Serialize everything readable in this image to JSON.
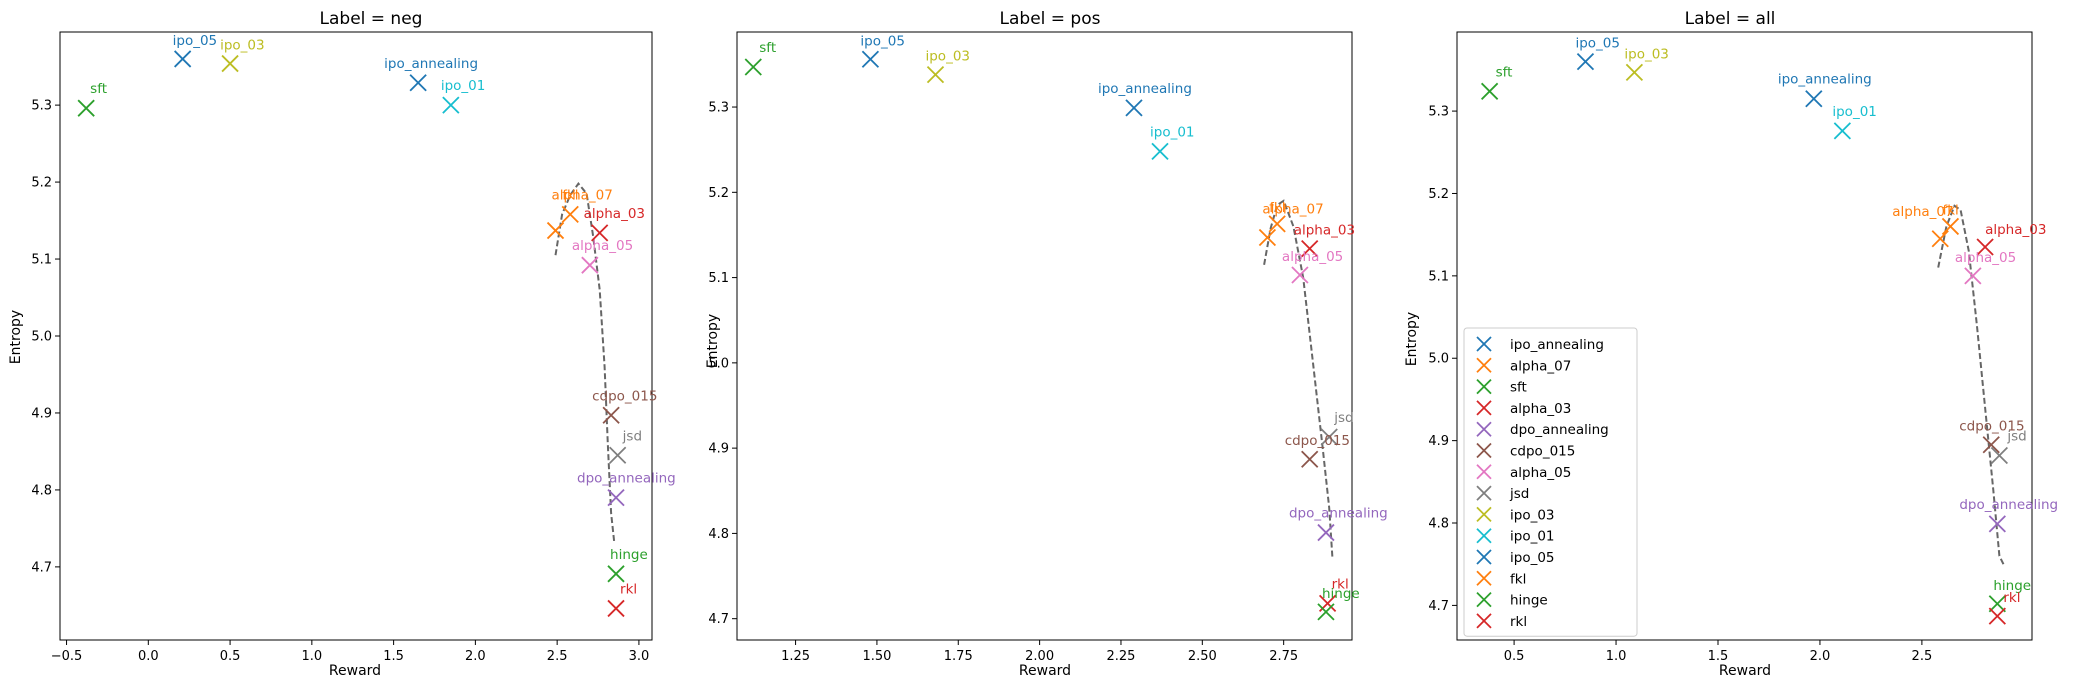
{
  "colors": {
    "ipo_annealing": "#1f77b4",
    "alpha_07": "#ff7f0e",
    "sft": "#2ca02c",
    "alpha_03": "#d62728",
    "dpo_annealing": "#9467bd",
    "cdpo_015": "#8c564b",
    "alpha_05": "#e377c2",
    "jsd": "#7f7f7f",
    "ipo_03": "#bcbd22",
    "ipo_01": "#17becf",
    "ipo_05": "#1f77b4",
    "fkl": "#ff7f0e",
    "hinge": "#2ca02c",
    "rkl": "#d62728",
    "curve": "#666666"
  },
  "legend_order": [
    "ipo_annealing",
    "alpha_07",
    "sft",
    "alpha_03",
    "dpo_annealing",
    "cdpo_015",
    "alpha_05",
    "jsd",
    "ipo_03",
    "ipo_01",
    "ipo_05",
    "fkl",
    "hinge",
    "rkl"
  ],
  "chart_data": [
    {
      "type": "scatter",
      "title": "Label = neg",
      "xlabel": "Reward",
      "ylabel": "Entropy",
      "xlim": [
        -0.54,
        3.08
      ],
      "ylim": [
        4.605,
        5.395
      ],
      "xticks": [
        -0.5,
        0.0,
        0.5,
        1.0,
        1.5,
        2.0,
        2.5,
        3.0
      ],
      "xtick_labels": [
        "−0.5",
        "0.0",
        "0.5",
        "1.0",
        "1.5",
        "2.0",
        "2.5",
        "3.0"
      ],
      "yticks": [
        4.7,
        4.8,
        4.9,
        5.0,
        5.1,
        5.2,
        5.3
      ],
      "ytick_labels": [
        "4.7",
        "4.8",
        "4.9",
        "5.0",
        "5.1",
        "5.2",
        "5.3"
      ],
      "legend": null,
      "points": [
        {
          "name": "ipo_05",
          "x": 0.21,
          "y": 5.36
        },
        {
          "name": "ipo_03",
          "x": 0.5,
          "y": 5.354
        },
        {
          "name": "sft",
          "x": -0.38,
          "y": 5.296
        },
        {
          "name": "ipo_annealing",
          "x": 1.65,
          "y": 5.329
        },
        {
          "name": "ipo_01",
          "x": 1.85,
          "y": 5.3
        },
        {
          "name": "alpha_07",
          "x": 2.49,
          "y": 5.137
        },
        {
          "name": "fkl",
          "x": 2.58,
          "y": 5.158
        },
        {
          "name": "alpha_03",
          "x": 2.76,
          "y": 5.134
        },
        {
          "name": "alpha_05",
          "x": 2.7,
          "y": 5.092
        },
        {
          "name": "cdpo_015",
          "x": 2.83,
          "y": 4.897
        },
        {
          "name": "jsd",
          "x": 2.87,
          "y": 4.845
        },
        {
          "name": "dpo_annealing",
          "x": 2.86,
          "y": 4.79
        },
        {
          "name": "hinge",
          "x": 2.86,
          "y": 4.691
        },
        {
          "name": "rkl",
          "x": 2.86,
          "y": 4.646
        }
      ],
      "curve": [
        [
          2.49,
          5.105
        ],
        [
          2.53,
          5.158
        ],
        [
          2.58,
          5.183
        ],
        [
          2.63,
          5.198
        ],
        [
          2.68,
          5.185
        ],
        [
          2.72,
          5.13
        ],
        [
          2.76,
          5.06
        ],
        [
          2.79,
          4.96
        ],
        [
          2.81,
          4.86
        ],
        [
          2.83,
          4.77
        ],
        [
          2.85,
          4.73
        ]
      ]
    },
    {
      "type": "scatter",
      "title": "Label = pos",
      "xlabel": "Reward",
      "ylabel": "Entropy",
      "xlim": [
        1.07,
        2.96
      ],
      "ylim": [
        4.675,
        5.388
      ],
      "xticks": [
        1.25,
        1.5,
        1.75,
        2.0,
        2.25,
        2.5,
        2.75
      ],
      "xtick_labels": [
        "1.25",
        "1.50",
        "1.75",
        "2.00",
        "2.25",
        "2.50",
        "2.75"
      ],
      "yticks": [
        4.7,
        4.8,
        4.9,
        5.0,
        5.1,
        5.2,
        5.3
      ],
      "ytick_labels": [
        "4.7",
        "4.8",
        "4.9",
        "5.0",
        "5.1",
        "5.2",
        "5.3"
      ],
      "legend": null,
      "points": [
        {
          "name": "sft",
          "x": 1.12,
          "y": 5.347
        },
        {
          "name": "ipo_05",
          "x": 1.48,
          "y": 5.356
        },
        {
          "name": "ipo_03",
          "x": 1.68,
          "y": 5.338
        },
        {
          "name": "ipo_annealing",
          "x": 2.29,
          "y": 5.299
        },
        {
          "name": "ipo_01",
          "x": 2.37,
          "y": 5.248
        },
        {
          "name": "alpha_07",
          "x": 2.7,
          "y": 5.147
        },
        {
          "name": "fkl",
          "x": 2.73,
          "y": 5.163
        },
        {
          "name": "alpha_03",
          "x": 2.83,
          "y": 5.134
        },
        {
          "name": "alpha_05",
          "x": 2.8,
          "y": 5.103
        },
        {
          "name": "jsd",
          "x": 2.89,
          "y": 4.913
        },
        {
          "name": "cdpo_015",
          "x": 2.83,
          "y": 4.887
        },
        {
          "name": "dpo_annealing",
          "x": 2.88,
          "y": 4.801
        },
        {
          "name": "rkl",
          "x": 2.885,
          "y": 4.718
        },
        {
          "name": "hinge",
          "x": 2.88,
          "y": 4.708
        }
      ],
      "curve": [
        [
          2.69,
          5.115
        ],
        [
          2.71,
          5.158
        ],
        [
          2.73,
          5.185
        ],
        [
          2.75,
          5.19
        ],
        [
          2.78,
          5.16
        ],
        [
          2.81,
          5.1
        ],
        [
          2.84,
          5.0
        ],
        [
          2.87,
          4.9
        ],
        [
          2.89,
          4.83
        ],
        [
          2.9,
          4.77
        ]
      ]
    },
    {
      "type": "scatter",
      "title": "Label = all",
      "xlabel": "Reward",
      "ylabel": "Entropy",
      "xlim": [
        0.22,
        3.04
      ],
      "ylim": [
        4.658,
        5.396
      ],
      "xticks": [
        0.5,
        1.0,
        1.5,
        2.0,
        2.5
      ],
      "xtick_labels": [
        "0.5",
        "1.0",
        "1.5",
        "2.0",
        "2.5"
      ],
      "yticks": [
        4.7,
        4.8,
        4.9,
        5.0,
        5.1,
        5.2,
        5.3
      ],
      "ytick_labels": [
        "4.7",
        "4.8",
        "4.9",
        "5.0",
        "5.1",
        "5.2",
        "5.3"
      ],
      "legend": "lower-left",
      "points": [
        {
          "name": "sft",
          "x": 0.38,
          "y": 5.324
        },
        {
          "name": "ipo_05",
          "x": 0.85,
          "y": 5.36
        },
        {
          "name": "ipo_03",
          "x": 1.09,
          "y": 5.347
        },
        {
          "name": "ipo_annealing",
          "x": 1.97,
          "y": 5.315
        },
        {
          "name": "ipo_01",
          "x": 2.11,
          "y": 5.276
        },
        {
          "name": "alpha_07",
          "x": 2.59,
          "y": 5.145
        },
        {
          "name": "fkl",
          "x": 2.64,
          "y": 5.16
        },
        {
          "name": "alpha_03",
          "x": 2.81,
          "y": 5.135
        },
        {
          "name": "alpha_05",
          "x": 2.75,
          "y": 5.1
        },
        {
          "name": "cdpo_015",
          "x": 2.84,
          "y": 4.895
        },
        {
          "name": "jsd",
          "x": 2.88,
          "y": 4.882
        },
        {
          "name": "dpo_annealing",
          "x": 2.87,
          "y": 4.799
        },
        {
          "name": "hinge",
          "x": 2.87,
          "y": 4.702
        },
        {
          "name": "rkl",
          "x": 2.87,
          "y": 4.687
        }
      ],
      "curve": [
        [
          2.58,
          5.11
        ],
        [
          2.62,
          5.16
        ],
        [
          2.66,
          5.185
        ],
        [
          2.69,
          5.18
        ],
        [
          2.73,
          5.13
        ],
        [
          2.77,
          5.04
        ],
        [
          2.81,
          4.94
        ],
        [
          2.85,
          4.84
        ],
        [
          2.88,
          4.76
        ],
        [
          2.9,
          4.75
        ]
      ]
    }
  ]
}
